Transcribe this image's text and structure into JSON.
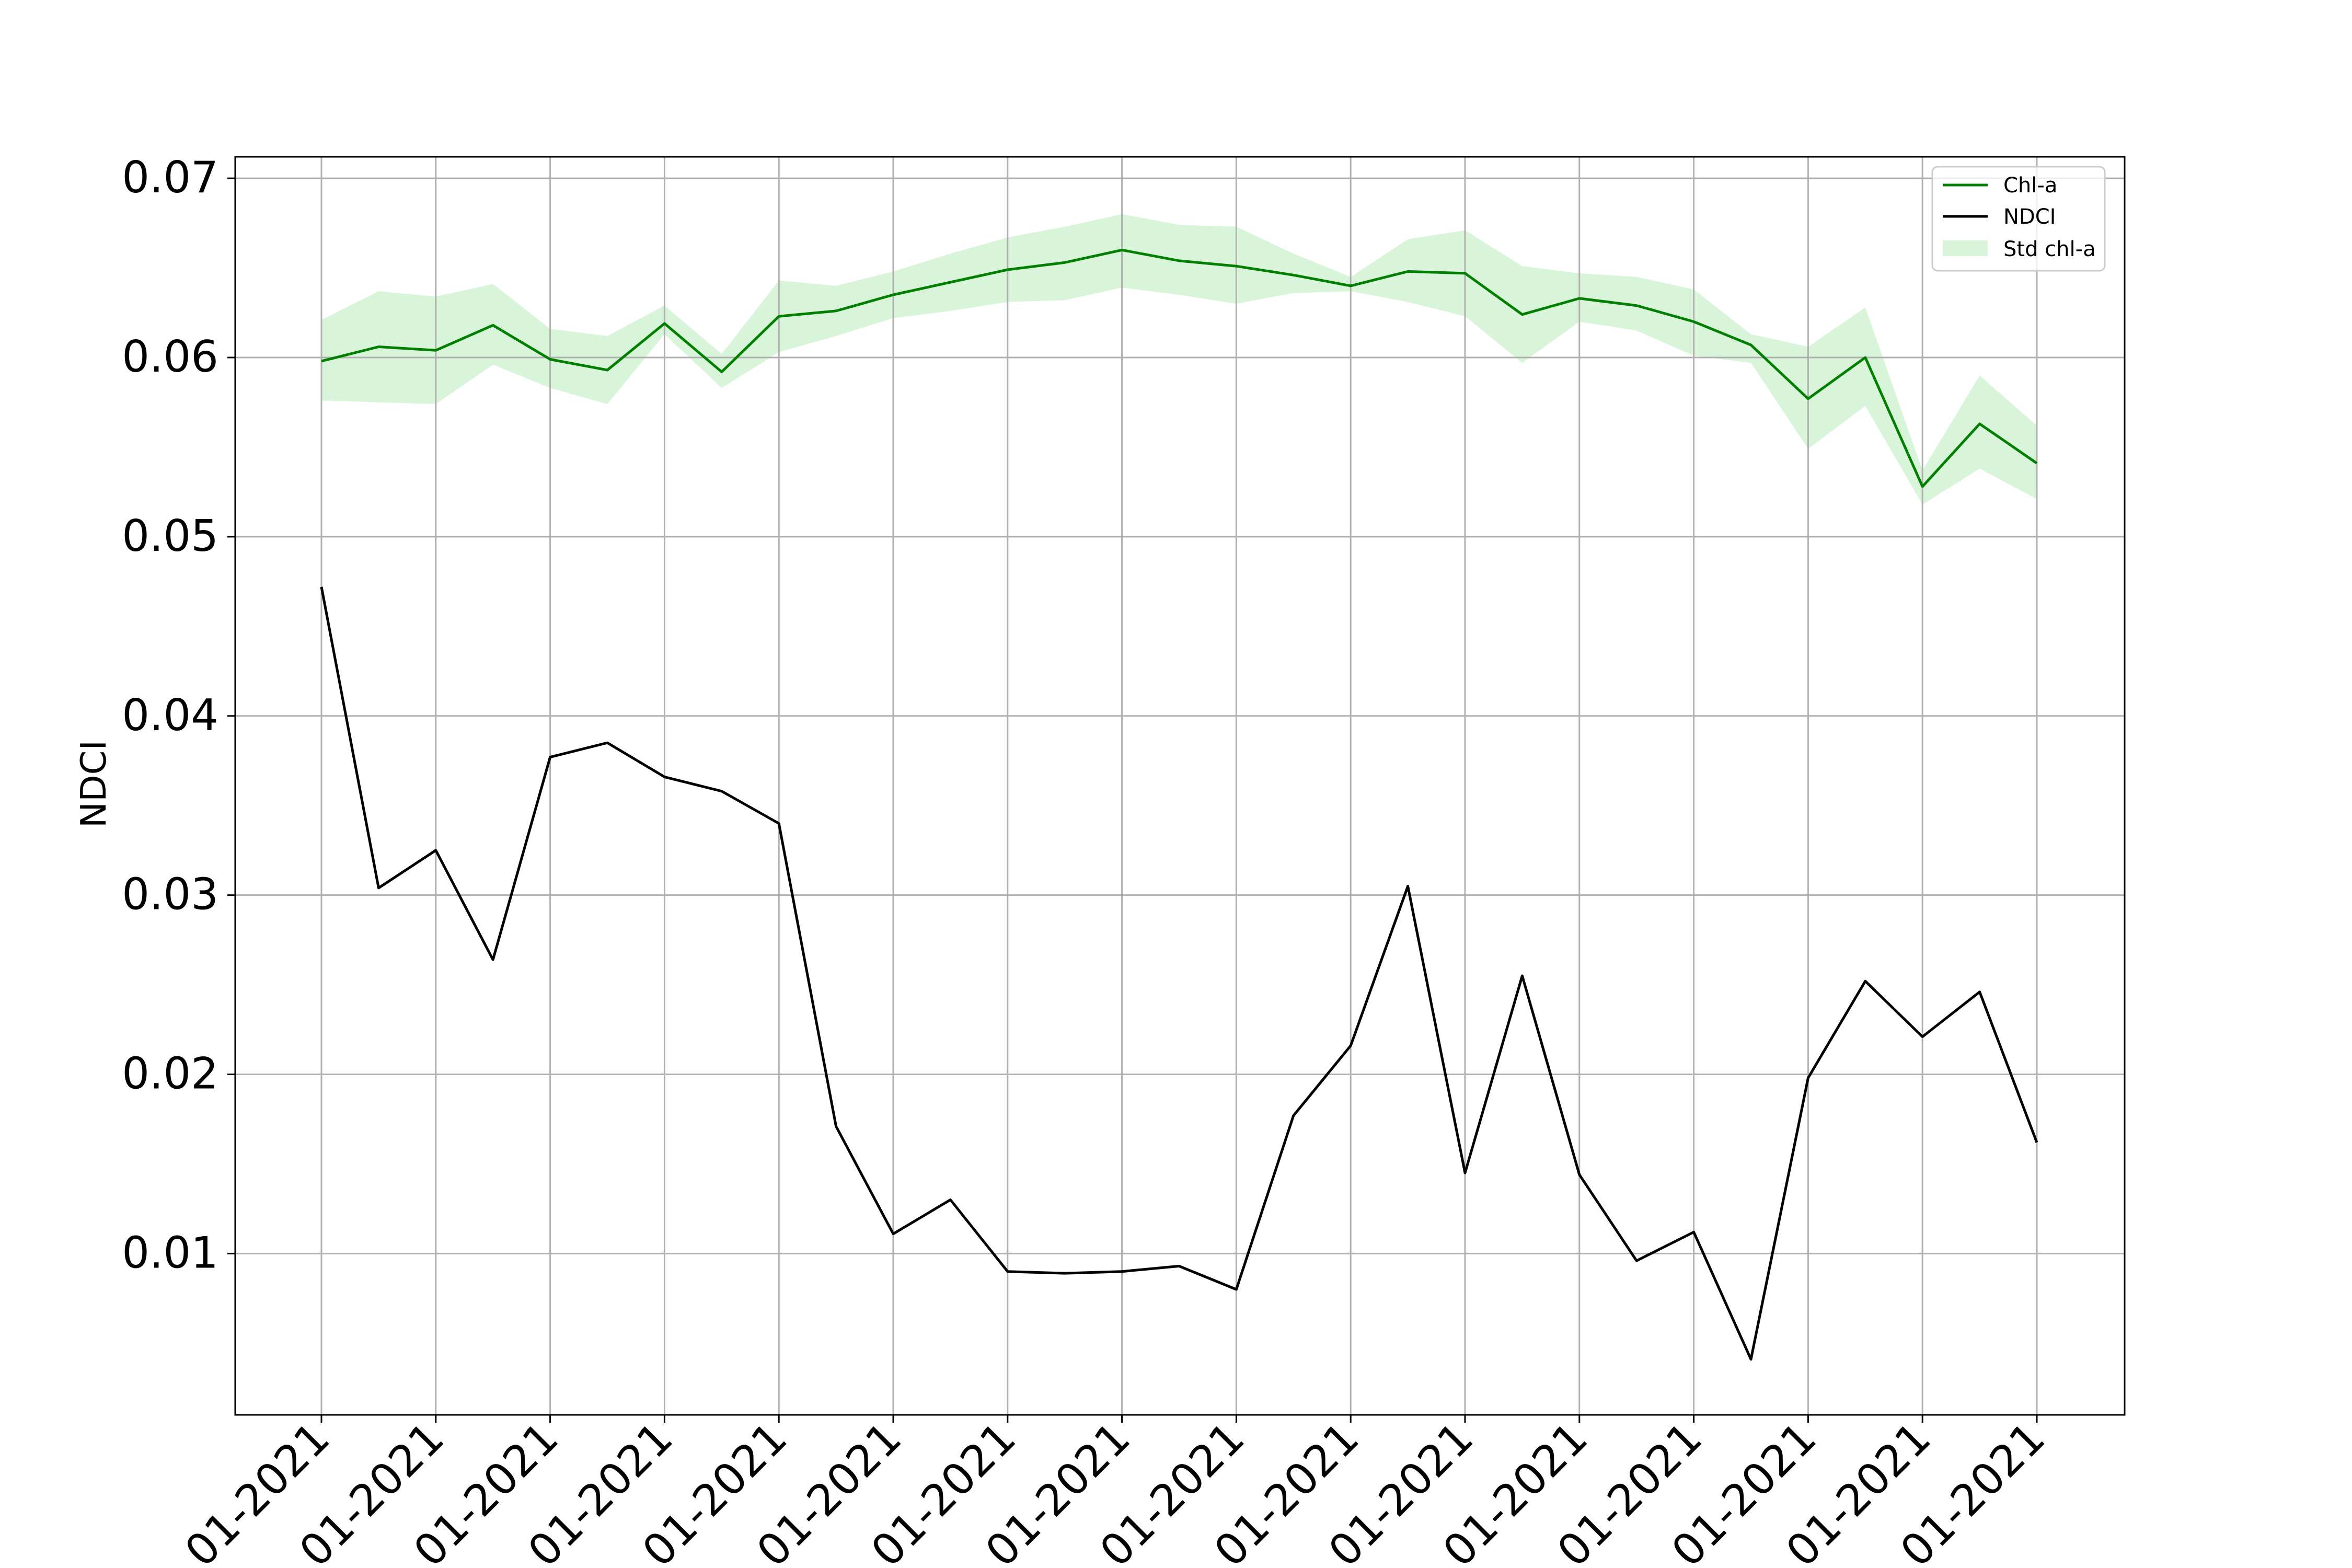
{
  "chart_data": {
    "type": "line",
    "title": "",
    "xlabel": "",
    "ylabel": "NDCI",
    "ylim": [
      0.001,
      0.0712
    ],
    "yticks": [
      0.01,
      0.02,
      0.03,
      0.04,
      0.05,
      0.06,
      0.07
    ],
    "ytick_labels": [
      "0.01",
      "0.02",
      "0.03",
      "0.04",
      "0.05",
      "0.06",
      "0.07"
    ],
    "xtick_labels": [
      "01-2021",
      "01-2021",
      "01-2021",
      "01-2021",
      "01-2021",
      "01-2021",
      "01-2021",
      "01-2021",
      "01-2021",
      "01-2021",
      "01-2021",
      "01-2021",
      "01-2021",
      "01-2021",
      "01-2021",
      "01-2021"
    ],
    "grid": true,
    "legend_position": "top-right",
    "colors": {
      "chl_a": "#007f00",
      "ndci": "#000000",
      "std_fill": "#d9f5d9",
      "grid": "#b0b0b0"
    },
    "series": [
      {
        "name": "Chl-a",
        "values": [
          0.0598,
          0.0606,
          0.0604,
          0.0618,
          0.0599,
          0.0593,
          0.0619,
          0.0592,
          0.0623,
          0.0626,
          0.0635,
          0.0642,
          0.0649,
          0.0653,
          0.066,
          0.0654,
          0.0651,
          0.0646,
          0.064,
          0.0648,
          0.0647,
          0.0624,
          0.0633,
          0.0629,
          0.062,
          0.0607,
          0.0577,
          0.06,
          0.0528,
          0.0563,
          0.0541
        ]
      },
      {
        "name": "NDCI",
        "values": [
          0.0472,
          0.0304,
          0.0325,
          0.0264,
          0.0377,
          0.0385,
          0.0366,
          0.0358,
          0.034,
          0.0171,
          0.0111,
          0.013,
          0.009,
          0.0089,
          0.009,
          0.0093,
          0.008,
          0.0177,
          0.0216,
          0.0305,
          0.0145,
          0.0255,
          0.0144,
          0.0096,
          0.0112,
          0.0041,
          0.0198,
          0.0252,
          0.0221,
          0.0246,
          0.0162
        ]
      },
      {
        "name": "Std chl-a",
        "type": "band",
        "upper": [
          0.0621,
          0.0637,
          0.0634,
          0.0641,
          0.0616,
          0.0612,
          0.0629,
          0.0602,
          0.0643,
          0.064,
          0.0648,
          0.0658,
          0.0667,
          0.0673,
          0.068,
          0.0674,
          0.0673,
          0.0658,
          0.0645,
          0.0666,
          0.0671,
          0.0651,
          0.0647,
          0.0645,
          0.0638,
          0.0613,
          0.0606,
          0.0628,
          0.0537,
          0.059,
          0.0562
        ],
        "lower": [
          0.0576,
          0.0575,
          0.0574,
          0.0596,
          0.0583,
          0.0574,
          0.0613,
          0.0583,
          0.0603,
          0.0612,
          0.0622,
          0.0626,
          0.0631,
          0.0632,
          0.0639,
          0.0635,
          0.063,
          0.0636,
          0.0637,
          0.0631,
          0.0623,
          0.0597,
          0.062,
          0.0615,
          0.0601,
          0.0597,
          0.0549,
          0.0573,
          0.0518,
          0.0538,
          0.0521
        ]
      }
    ]
  }
}
